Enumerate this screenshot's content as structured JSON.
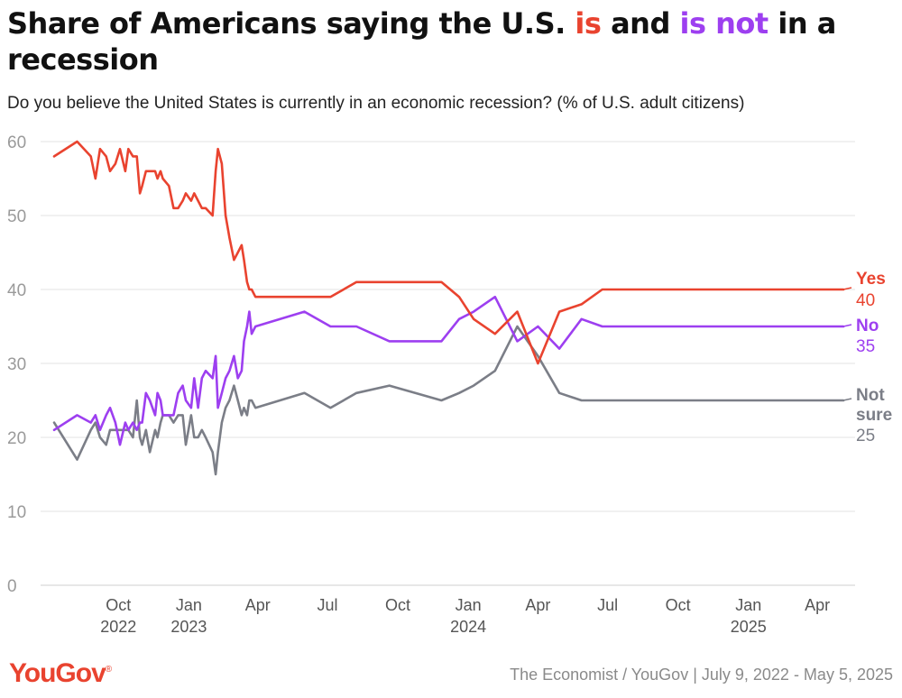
{
  "header": {
    "title_part1": "Share of Americans saying the U.S. ",
    "title_is": "is",
    "title_and": " and ",
    "title_is_not": "is not",
    "title_part2": " in a recession",
    "subtitle": "Do you believe the United States is currently in an economic recession? (% of U.S. adult citizens)"
  },
  "footer": {
    "logo": "YouGov",
    "logo_mark": "®",
    "source": "The Economist / YouGov | July 9, 2022 - May 5, 2025"
  },
  "colors": {
    "yes": "#e9432f",
    "no": "#9d3ff0",
    "not_sure": "#7b7e87",
    "grid": "#e3e3e3",
    "tick": "#9a9a9a"
  },
  "chart_data": {
    "type": "line",
    "title": "Share of Americans saying the U.S. is and is not in a recession",
    "xlabel": "",
    "ylabel": "",
    "ylim": [
      0,
      60
    ],
    "yticks": [
      0,
      10,
      20,
      30,
      40,
      50,
      60
    ],
    "xlim": [
      "2022-07-09",
      "2025-05-05"
    ],
    "xticks": [
      {
        "date": "2022-10-01",
        "label": "Oct",
        "sublabel": "2022"
      },
      {
        "date": "2023-01-01",
        "label": "Jan",
        "sublabel": "2023"
      },
      {
        "date": "2023-04-01",
        "label": "Apr",
        "sublabel": ""
      },
      {
        "date": "2023-07-01",
        "label": "Jul",
        "sublabel": ""
      },
      {
        "date": "2023-10-01",
        "label": "Oct",
        "sublabel": ""
      },
      {
        "date": "2024-01-01",
        "label": "Jan",
        "sublabel": "2024"
      },
      {
        "date": "2024-04-01",
        "label": "Apr",
        "sublabel": ""
      },
      {
        "date": "2024-07-01",
        "label": "Jul",
        "sublabel": ""
      },
      {
        "date": "2024-10-01",
        "label": "Oct",
        "sublabel": ""
      },
      {
        "date": "2025-01-01",
        "label": "Jan",
        "sublabel": "2025"
      },
      {
        "date": "2025-04-01",
        "label": "Apr",
        "sublabel": ""
      }
    ],
    "x": [
      "2022-07-09",
      "2022-08-08",
      "2022-08-26",
      "2022-09-01",
      "2022-09-07",
      "2022-09-15",
      "2022-09-20",
      "2022-09-27",
      "2022-10-03",
      "2022-10-10",
      "2022-10-14",
      "2022-10-20",
      "2022-10-25",
      "2022-10-29",
      "2022-11-01",
      "2022-11-06",
      "2022-11-11",
      "2022-11-18",
      "2022-11-21",
      "2022-11-25",
      "2022-11-28",
      "2022-12-06",
      "2022-12-12",
      "2022-12-18",
      "2022-12-24",
      "2022-12-28",
      "2023-01-04",
      "2023-01-08",
      "2023-01-13",
      "2023-01-18",
      "2023-01-23",
      "2023-02-01",
      "2023-02-05",
      "2023-02-08",
      "2023-02-13",
      "2023-02-18",
      "2023-02-23",
      "2023-03-01",
      "2023-03-06",
      "2023-03-11",
      "2023-03-14",
      "2023-03-18",
      "2023-03-21",
      "2023-03-24",
      "2023-03-29",
      "2023-06-01",
      "2023-07-05",
      "2023-08-08",
      "2023-09-20",
      "2023-11-27",
      "2023-12-20",
      "2024-01-08",
      "2024-02-05",
      "2024-03-05",
      "2024-04-01",
      "2024-04-29",
      "2024-05-28",
      "2024-06-24",
      "2024-07-22",
      "2024-08-19",
      "2024-09-17",
      "2024-10-10",
      "2024-11-06",
      "2024-12-02",
      "2024-12-31",
      "2025-02-03",
      "2025-02-27",
      "2025-03-24",
      "2025-04-14",
      "2025-05-05"
    ],
    "series": [
      {
        "name": "Yes",
        "color": "#e9432f",
        "values": [
          58,
          60,
          58,
          55,
          59,
          58,
          56,
          57,
          59,
          56,
          59,
          58,
          58,
          53,
          54,
          56,
          56,
          56,
          55,
          56,
          55,
          54,
          51,
          51,
          52,
          53,
          52,
          53,
          52,
          51,
          51,
          50,
          56,
          59,
          57,
          50,
          47,
          44,
          45,
          46,
          44,
          41,
          40,
          40,
          39,
          39,
          39,
          41,
          41,
          41,
          39,
          36,
          34,
          37,
          30,
          37,
          38,
          40,
          40,
          40,
          40,
          40,
          40,
          40,
          40,
          40,
          40,
          40,
          40,
          40
        ]
      },
      {
        "name": "No",
        "color": "#9d3ff0",
        "values": [
          21,
          23,
          22,
          23,
          21,
          23,
          24,
          22,
          19,
          22,
          21,
          22,
          21,
          22,
          22,
          26,
          25,
          23,
          26,
          25,
          23,
          23,
          23,
          26,
          27,
          25,
          24,
          28,
          24,
          28,
          29,
          28,
          31,
          24,
          26,
          28,
          29,
          31,
          28,
          29,
          33,
          35,
          37,
          34,
          35,
          37,
          35,
          35,
          33,
          33,
          36,
          37,
          39,
          33,
          35,
          32,
          36,
          35,
          35,
          35,
          35,
          35,
          35,
          35,
          35,
          35,
          35,
          35,
          35,
          35
        ]
      },
      {
        "name": "Not sure",
        "color": "#7b7e87",
        "values": [
          22,
          17,
          21,
          22,
          20,
          19,
          21,
          21,
          21,
          21,
          21,
          20,
          25,
          20,
          19,
          21,
          18,
          21,
          20,
          22,
          23,
          23,
          22,
          23,
          23,
          19,
          23,
          20,
          20,
          21,
          20,
          18,
          15,
          18,
          22,
          24,
          25,
          27,
          25,
          23,
          24,
          23,
          25,
          25,
          24,
          26,
          24,
          26,
          27,
          25,
          26,
          27,
          29,
          35,
          31,
          26,
          25,
          25,
          25,
          25,
          25,
          25,
          25,
          25,
          25,
          25,
          25,
          25,
          25,
          25
        ]
      }
    ],
    "end_labels": [
      {
        "series": "Yes",
        "label": "Yes",
        "value": "40"
      },
      {
        "series": "No",
        "label": "No",
        "value": "35"
      },
      {
        "series": "Not sure",
        "label": "Not sure",
        "value": "25"
      }
    ]
  }
}
